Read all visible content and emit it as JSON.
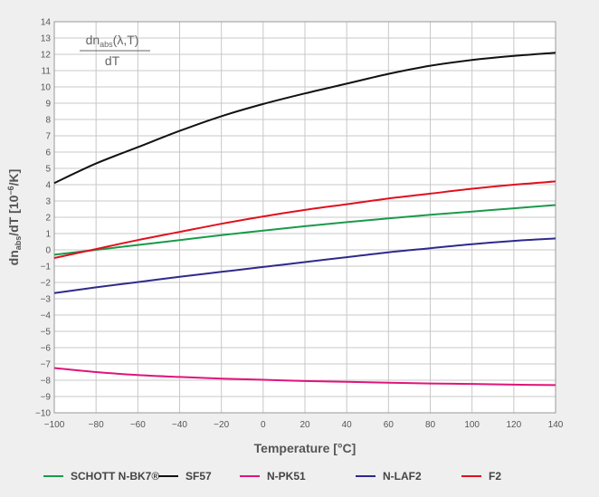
{
  "chart_data": {
    "type": "line",
    "title": "",
    "xlabel": "Temperature [°C]",
    "ylabel": "dn_abs/dT [10^-6/K]",
    "ylabel_parts": {
      "main": "dn",
      "sub": "abs",
      "mid": "/dT [10",
      "sup": "−6",
      "end": "/K]"
    },
    "formula": {
      "num_main": "dn",
      "num_sub": "abs",
      "num_rest": "(λ,T)",
      "den": "dT"
    },
    "xlim": [
      -100,
      140
    ],
    "ylim": [
      -10,
      14
    ],
    "xticks": [
      -100,
      -80,
      -60,
      -40,
      -20,
      0,
      20,
      40,
      60,
      80,
      100,
      120,
      140
    ],
    "xtick_labels": [
      "−100",
      "−80",
      "−60",
      "−40",
      "−20",
      "0",
      "20",
      "40",
      "60",
      "80",
      "100",
      "120",
      "140"
    ],
    "yticks": [
      -10,
      -9,
      -8,
      -7,
      -6,
      -5,
      -4,
      -3,
      -2,
      -1,
      0,
      1,
      2,
      3,
      4,
      5,
      6,
      7,
      8,
      9,
      10,
      11,
      12,
      13,
      14
    ],
    "ytick_labels": [
      "−10",
      "−9",
      "−8",
      "−7",
      "−6",
      "−5",
      "−4",
      "−3",
      "−2",
      "−1",
      "0",
      "1",
      "2",
      "3",
      "4",
      "5",
      "6",
      "7",
      "8",
      "9",
      "10",
      "11",
      "12",
      "13",
      "14"
    ],
    "grid": true,
    "legend_position": "bottom",
    "series": [
      {
        "name": "SCHOTT N-BK7®",
        "color": "#1a9a4a",
        "x": [
          -100,
          -80,
          -60,
          -40,
          -20,
          0,
          20,
          40,
          60,
          80,
          100,
          120,
          140
        ],
        "y": [
          -0.3,
          0.0,
          0.3,
          0.6,
          0.9,
          1.18,
          1.45,
          1.7,
          1.93,
          2.15,
          2.35,
          2.55,
          2.75
        ]
      },
      {
        "name": "SF57",
        "color": "#111111",
        "x": [
          -100,
          -80,
          -60,
          -40,
          -20,
          0,
          20,
          40,
          60,
          80,
          100,
          120,
          140
        ],
        "y": [
          4.1,
          5.3,
          6.3,
          7.3,
          8.2,
          8.95,
          9.6,
          10.2,
          10.8,
          11.3,
          11.65,
          11.9,
          12.1
        ]
      },
      {
        "name": "N-PK51",
        "color": "#e0147a",
        "x": [
          -100,
          -80,
          -60,
          -40,
          -20,
          0,
          20,
          40,
          60,
          80,
          100,
          120,
          140
        ],
        "y": [
          -7.25,
          -7.5,
          -7.68,
          -7.8,
          -7.9,
          -7.97,
          -8.05,
          -8.1,
          -8.15,
          -8.2,
          -8.23,
          -8.27,
          -8.3
        ]
      },
      {
        "name": "N-LAF2",
        "color": "#2e2a8c",
        "x": [
          -100,
          -80,
          -60,
          -40,
          -20,
          0,
          20,
          40,
          60,
          80,
          100,
          120,
          140
        ],
        "y": [
          -2.65,
          -2.3,
          -1.98,
          -1.65,
          -1.35,
          -1.05,
          -0.75,
          -0.45,
          -0.15,
          0.1,
          0.35,
          0.55,
          0.7
        ]
      },
      {
        "name": "F2",
        "color": "#e0111e",
        "x": [
          -100,
          -80,
          -60,
          -40,
          -20,
          0,
          20,
          40,
          60,
          80,
          100,
          120,
          140
        ],
        "y": [
          -0.5,
          0.05,
          0.6,
          1.1,
          1.6,
          2.05,
          2.45,
          2.8,
          3.15,
          3.45,
          3.75,
          4.0,
          4.2
        ]
      }
    ]
  }
}
